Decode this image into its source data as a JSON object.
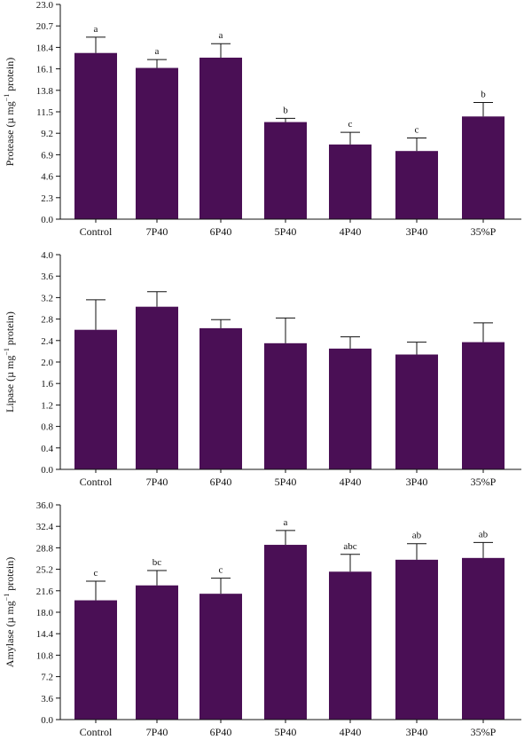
{
  "colors": {
    "bar": "#4a0f55",
    "axis": "#111111",
    "text": "#111111"
  },
  "chart_data": [
    {
      "type": "bar",
      "ylabel_main": "Protease (",
      "ylabel_unit": "µ mg",
      "ylabel_exp": "−1",
      "ylabel_tail": " protein)",
      "categories": [
        "Control",
        "7P40",
        "6P40",
        "5P40",
        "4P40",
        "3P40",
        "35%P"
      ],
      "values": [
        17.8,
        16.2,
        17.3,
        10.4,
        8.0,
        7.3,
        11.0
      ],
      "errors": [
        1.7,
        0.9,
        1.5,
        0.4,
        1.3,
        1.4,
        1.5
      ],
      "letters": [
        "a",
        "a",
        "a",
        "b",
        "c",
        "c",
        "b"
      ],
      "yticks": [
        "0.0",
        "2.3",
        "4.6",
        "6.9",
        "9.2",
        "11.5",
        "13.8",
        "16.1",
        "18.4",
        "20.7",
        "23.0"
      ],
      "ylim": [
        0,
        23.0
      ]
    },
    {
      "type": "bar",
      "ylabel_main": "Lipase (",
      "ylabel_unit": "µ mg",
      "ylabel_exp": "−1",
      "ylabel_tail": " protein)",
      "categories": [
        "Control",
        "7P40",
        "6P40",
        "5P40",
        "4P40",
        "3P40",
        "35%P"
      ],
      "values": [
        2.6,
        3.03,
        2.63,
        2.35,
        2.25,
        2.14,
        2.37
      ],
      "errors": [
        0.56,
        0.28,
        0.16,
        0.47,
        0.22,
        0.23,
        0.36
      ],
      "letters": [
        "",
        "",
        "",
        "",
        "",
        "",
        ""
      ],
      "yticks": [
        "0.0",
        "0.4",
        "0.8",
        "1.2",
        "1.6",
        "2.0",
        "2.4",
        "2.8",
        "3.2",
        "3.6",
        "4.0"
      ],
      "ylim": [
        0,
        4.0
      ]
    },
    {
      "type": "bar",
      "ylabel_main": "Amylase (",
      "ylabel_unit": "µ mg",
      "ylabel_exp": "−1",
      "ylabel_tail": " protein)",
      "categories": [
        "Control",
        "7P40",
        "6P40",
        "5P40",
        "4P40",
        "3P40",
        "35%P"
      ],
      "values": [
        20.0,
        22.5,
        21.1,
        29.3,
        24.8,
        26.8,
        27.1
      ],
      "errors": [
        3.2,
        2.5,
        2.6,
        2.4,
        2.9,
        2.7,
        2.6
      ],
      "letters": [
        "c",
        "bc",
        "c",
        "a",
        "abc",
        "ab",
        "ab"
      ],
      "yticks": [
        "0.0",
        "3.6",
        "7.2",
        "10.8",
        "14.4",
        "18.0",
        "21.6",
        "25.2",
        "28.8",
        "32.4",
        "36.0"
      ],
      "ylim": [
        0,
        36.0
      ]
    }
  ]
}
